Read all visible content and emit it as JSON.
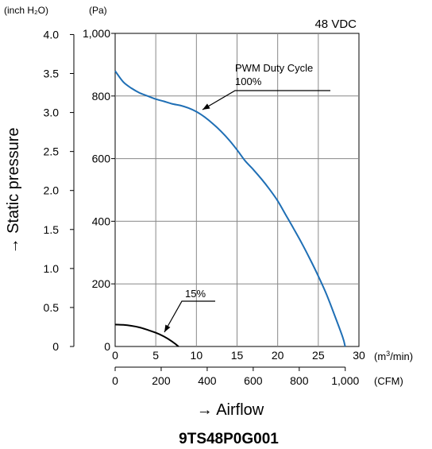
{
  "chart_data": {
    "type": "line",
    "title": "9TS48P0G001",
    "corner_label": "48 VDC",
    "xlabel": "→  Airflow",
    "ylabel": "→  Static pressure",
    "x_unit_primary": "(m³/min)",
    "x_unit_secondary": "(CFM)",
    "y_unit_left": "(inch H₂O)",
    "y_unit_right": "(Pa)",
    "xlim": [
      0,
      30
    ],
    "ylim": [
      0,
      1000
    ],
    "grid": true,
    "x_ticks_m3min": [
      0,
      5,
      10,
      15,
      20,
      25,
      30
    ],
    "x_tick_labels_m3min": [
      "0",
      "5",
      "10",
      "15",
      "20",
      "25",
      "30"
    ],
    "x_ticks_cfm": [
      0,
      200,
      400,
      600,
      800,
      1000
    ],
    "x_tick_labels_cfm": [
      "0",
      "200",
      "400",
      "600",
      "800",
      "1,000"
    ],
    "y_ticks_pa": [
      0,
      200,
      400,
      600,
      800,
      1000
    ],
    "y_tick_labels_pa": [
      "0",
      "200",
      "400",
      "600",
      "800",
      "1,000"
    ],
    "y_ticks_inh2o": [
      0,
      0.5,
      1.0,
      1.5,
      2.0,
      2.5,
      3.0,
      3.5,
      4.0
    ],
    "y_tick_labels_inh2o": [
      "0",
      "0.5",
      "1.0",
      "1.5",
      "2.0",
      "2.5",
      "3.0",
      "3.5",
      "4.0"
    ],
    "series": [
      {
        "name": "PWM Duty Cycle\n100%",
        "color": "#1f6fb5",
        "x": [
          0,
          1,
          2,
          3,
          4,
          5,
          6,
          7,
          8,
          9,
          10,
          11,
          12,
          13,
          14,
          15,
          16,
          17,
          18,
          19,
          20,
          21,
          22,
          23,
          24,
          25,
          26,
          27,
          28,
          28.3
        ],
        "y": [
          880,
          845,
          825,
          810,
          800,
          790,
          783,
          775,
          770,
          762,
          750,
          733,
          712,
          688,
          660,
          628,
          593,
          565,
          535,
          502,
          465,
          420,
          375,
          328,
          278,
          225,
          167,
          100,
          30,
          0
        ]
      },
      {
        "name": "15%",
        "color": "#000000",
        "x": [
          0,
          1,
          2,
          3,
          4,
          5,
          6,
          7,
          7.8
        ],
        "y": [
          70,
          69,
          66,
          61,
          53,
          44,
          32,
          16,
          0
        ]
      }
    ]
  }
}
